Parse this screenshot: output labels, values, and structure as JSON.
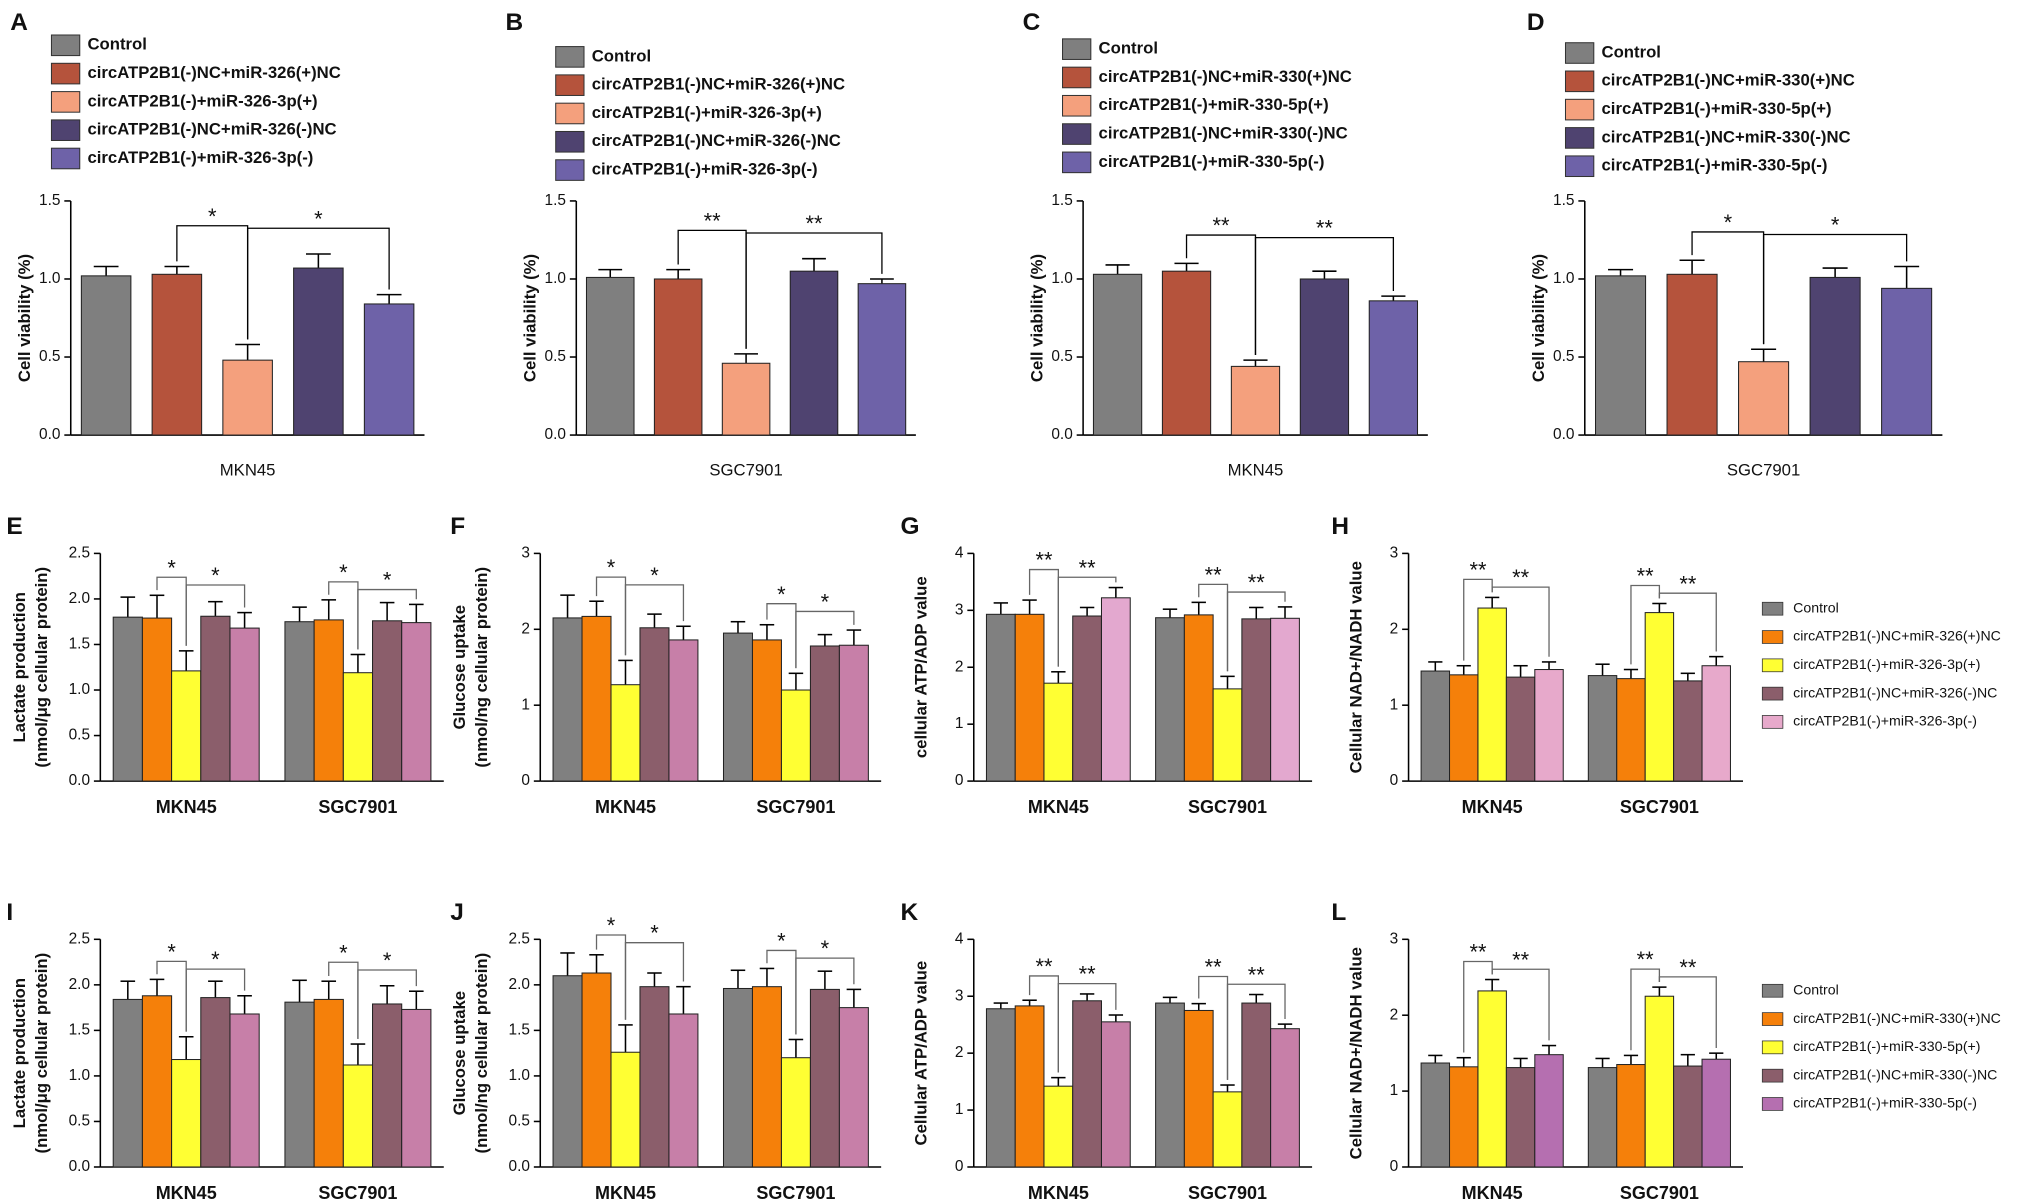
{
  "chart_data": [
    {
      "panel": "A",
      "type": "bar",
      "categories": [
        "MKN45"
      ],
      "legend": "top",
      "ylabel": [
        "Cell viability (%)"
      ],
      "ylim": [
        0,
        1.5
      ],
      "yticks": [
        {
          "value": 0,
          "label": "0.0"
        },
        {
          "value": 0.5,
          "label": "0.5"
        },
        {
          "value": 1,
          "label": "1.0"
        },
        {
          "value": 1.5,
          "label": "1.5"
        }
      ],
      "annotations": [
        "*",
        "*"
      ],
      "series": [
        {
          "name": "Control",
          "color": "#7f7f7f",
          "values": [
            1.02
          ],
          "errors": [
            0.06
          ]
        },
        {
          "name": "circATP2B1(-)NC+miR-326(+)NC",
          "color": "#b5533c",
          "values": [
            1.03
          ],
          "errors": [
            0.05
          ]
        },
        {
          "name": "circATP2B1(-)+miR-326-3p(+)",
          "color": "#f4a07d",
          "values": [
            0.48
          ],
          "errors": [
            0.1
          ]
        },
        {
          "name": "circATP2B1(-)NC+miR-326(-)NC",
          "color": "#4f4370",
          "values": [
            1.07
          ],
          "errors": [
            0.09
          ]
        },
        {
          "name": "circATP2B1(-)+miR-326-3p(-)",
          "color": "#6e62a8",
          "values": [
            0.84
          ],
          "errors": [
            0.06
          ]
        }
      ]
    },
    {
      "panel": "B",
      "type": "bar",
      "categories": [
        "SGC7901"
      ],
      "legend": "top",
      "ylabel": [
        "Cell viability (%)"
      ],
      "ylim": [
        0,
        1.5
      ],
      "yticks": [
        {
          "value": 0,
          "label": "0.0"
        },
        {
          "value": 0.5,
          "label": "0.5"
        },
        {
          "value": 1,
          "label": "1.0"
        },
        {
          "value": 1.5,
          "label": "1.5"
        }
      ],
      "annotations": [
        "**",
        "**"
      ],
      "series": [
        {
          "name": "Control",
          "color": "#7f7f7f",
          "values": [
            1.01
          ],
          "errors": [
            0.05
          ]
        },
        {
          "name": "circATP2B1(-)NC+miR-326(+)NC",
          "color": "#b5533c",
          "values": [
            1.0
          ],
          "errors": [
            0.06
          ]
        },
        {
          "name": "circATP2B1(-)+miR-326-3p(+)",
          "color": "#f4a07d",
          "values": [
            0.46
          ],
          "errors": [
            0.06
          ]
        },
        {
          "name": "circATP2B1(-)NC+miR-326(-)NC",
          "color": "#4f4370",
          "values": [
            1.05
          ],
          "errors": [
            0.08
          ]
        },
        {
          "name": "circATP2B1(-)+miR-326-3p(-)",
          "color": "#6e62a8",
          "values": [
            0.97
          ],
          "errors": [
            0.03
          ]
        }
      ]
    },
    {
      "panel": "C",
      "type": "bar",
      "categories": [
        "MKN45"
      ],
      "legend": "top",
      "ylabel": [
        "Cell viability (%)"
      ],
      "ylim": [
        0,
        1.5
      ],
      "yticks": [
        {
          "value": 0,
          "label": "0.0"
        },
        {
          "value": 0.5,
          "label": "0.5"
        },
        {
          "value": 1,
          "label": "1.0"
        },
        {
          "value": 1.5,
          "label": "1.5"
        }
      ],
      "annotations": [
        "**",
        "**"
      ],
      "series": [
        {
          "name": "Control",
          "color": "#7f7f7f",
          "values": [
            1.03
          ],
          "errors": [
            0.06
          ]
        },
        {
          "name": "circATP2B1(-)NC+miR-330(+)NC",
          "color": "#b5533c",
          "values": [
            1.05
          ],
          "errors": [
            0.05
          ]
        },
        {
          "name": "circATP2B1(-)+miR-330-5p(+)",
          "color": "#f4a07d",
          "values": [
            0.44
          ],
          "errors": [
            0.04
          ]
        },
        {
          "name": "circATP2B1(-)NC+miR-330(-)NC",
          "color": "#4f4370",
          "values": [
            1.0
          ],
          "errors": [
            0.05
          ]
        },
        {
          "name": "circATP2B1(-)+miR-330-5p(-)",
          "color": "#6e62a8",
          "values": [
            0.86
          ],
          "errors": [
            0.03
          ]
        }
      ]
    },
    {
      "panel": "D",
      "type": "bar",
      "categories": [
        "SGC7901"
      ],
      "legend": "top",
      "ylabel": [
        "Cell viability (%)"
      ],
      "ylim": [
        0,
        1.5
      ],
      "yticks": [
        {
          "value": 0,
          "label": "0.0"
        },
        {
          "value": 0.5,
          "label": "0.5"
        },
        {
          "value": 1,
          "label": "1.0"
        },
        {
          "value": 1.5,
          "label": "1.5"
        }
      ],
      "annotations": [
        "*",
        "*"
      ],
      "series": [
        {
          "name": "Control",
          "color": "#7f7f7f",
          "values": [
            1.02
          ],
          "errors": [
            0.04
          ]
        },
        {
          "name": "circATP2B1(-)NC+miR-330(+)NC",
          "color": "#b5533c",
          "values": [
            1.03
          ],
          "errors": [
            0.09
          ]
        },
        {
          "name": "circATP2B1(-)+miR-330-5p(+)",
          "color": "#f4a07d",
          "values": [
            0.47
          ],
          "errors": [
            0.08
          ]
        },
        {
          "name": "circATP2B1(-)NC+miR-330(-)NC",
          "color": "#4f4370",
          "values": [
            1.01
          ],
          "errors": [
            0.06
          ]
        },
        {
          "name": "circATP2B1(-)+miR-330-5p(-)",
          "color": "#6e62a8",
          "values": [
            0.94
          ],
          "errors": [
            0.14
          ]
        }
      ]
    },
    {
      "panel": "E",
      "type": "bar",
      "categories": [
        "MKN45",
        "SGC7901"
      ],
      "ylabel": [
        "Lactate production",
        "(nmol/μg cellular protein)"
      ],
      "ylim": [
        0,
        2.5
      ],
      "yticks": [
        {
          "value": 0,
          "label": "0.0"
        },
        {
          "value": 0.5,
          "label": "0.5"
        },
        {
          "value": 1,
          "label": "1.0"
        },
        {
          "value": 1.5,
          "label": "1.5"
        },
        {
          "value": 2,
          "label": "2.0"
        },
        {
          "value": 2.5,
          "label": "2.5"
        }
      ],
      "annotations": [
        "*",
        "*",
        "*",
        "*"
      ],
      "series": [
        {
          "color": "#808080",
          "values": [
            1.8,
            1.75
          ],
          "errors": [
            0.22,
            0.16
          ]
        },
        {
          "color": "#f5800a",
          "values": [
            1.79,
            1.77
          ],
          "errors": [
            0.25,
            0.22
          ]
        },
        {
          "color": "#ffff33",
          "values": [
            1.21,
            1.19
          ],
          "errors": [
            0.22,
            0.2
          ]
        },
        {
          "color": "#8b5e6b",
          "values": [
            1.81,
            1.76
          ],
          "errors": [
            0.16,
            0.2
          ]
        },
        {
          "color": "#c77fa8",
          "values": [
            1.68,
            1.74
          ],
          "errors": [
            0.17,
            0.2
          ]
        }
      ]
    },
    {
      "panel": "F",
      "type": "bar",
      "categories": [
        "MKN45",
        "SGC7901"
      ],
      "ylabel": [
        "Glucose uptake",
        "(nmol/ng cellular protein)"
      ],
      "ylim": [
        0,
        3
      ],
      "yticks": [
        0,
        1,
        2,
        3
      ],
      "annotations": [
        "*",
        "*",
        "*",
        "*"
      ],
      "series": [
        {
          "color": "#808080",
          "values": [
            2.15,
            1.95
          ],
          "errors": [
            0.3,
            0.15
          ]
        },
        {
          "color": "#f5800a",
          "values": [
            2.17,
            1.86
          ],
          "errors": [
            0.2,
            0.2
          ]
        },
        {
          "color": "#ffff33",
          "values": [
            1.27,
            1.2
          ],
          "errors": [
            0.32,
            0.22
          ]
        },
        {
          "color": "#8b5e6b",
          "values": [
            2.02,
            1.78
          ],
          "errors": [
            0.18,
            0.15
          ]
        },
        {
          "color": "#c77fa8",
          "values": [
            1.86,
            1.79
          ],
          "errors": [
            0.18,
            0.2
          ]
        }
      ]
    },
    {
      "panel": "G",
      "type": "bar",
      "categories": [
        "MKN45",
        "SGC7901"
      ],
      "ylabel": [
        "cellular ATP/ADP value"
      ],
      "ylim": [
        0,
        4
      ],
      "yticks": [
        0,
        1,
        2,
        3,
        4
      ],
      "annotations": [
        "**",
        "**",
        "**",
        "**"
      ],
      "series": [
        {
          "color": "#808080",
          "values": [
            2.93,
            2.87
          ],
          "errors": [
            0.2,
            0.15
          ]
        },
        {
          "color": "#f5800a",
          "values": [
            2.93,
            2.92
          ],
          "errors": [
            0.25,
            0.22
          ]
        },
        {
          "color": "#ffff33",
          "values": [
            1.72,
            1.62
          ],
          "errors": [
            0.2,
            0.22
          ]
        },
        {
          "color": "#8b5e6b",
          "values": [
            2.9,
            2.85
          ],
          "errors": [
            0.15,
            0.2
          ]
        },
        {
          "color": "#e3a8cf",
          "values": [
            3.22,
            2.86
          ],
          "errors": [
            0.18,
            0.2
          ]
        }
      ]
    },
    {
      "panel": "H",
      "type": "bar",
      "categories": [
        "MKN45",
        "SGC7901"
      ],
      "legend": "right",
      "ylabel": [
        "Cellular NAD+/NADH value"
      ],
      "ylim": [
        0,
        3
      ],
      "yticks": [
        0,
        1,
        2,
        3
      ],
      "annotations": [
        "**",
        "**",
        "**",
        "**"
      ],
      "series": [
        {
          "name": "Control",
          "color": "#808080",
          "values": [
            1.45,
            1.39
          ],
          "errors": [
            0.12,
            0.15
          ]
        },
        {
          "name": "circATP2B1(-)NC+miR-326(+)NC",
          "color": "#f5800a",
          "values": [
            1.4,
            1.35
          ],
          "errors": [
            0.12,
            0.12
          ]
        },
        {
          "name": "circATP2B1(-)+miR-326-3p(+)",
          "color": "#ffff33",
          "values": [
            2.28,
            2.22
          ],
          "errors": [
            0.14,
            0.12
          ]
        },
        {
          "name": "circATP2B1(-)NC+miR-326(-)NC",
          "color": "#8b5e6b",
          "values": [
            1.37,
            1.32
          ],
          "errors": [
            0.15,
            0.1
          ]
        },
        {
          "name": "circATP2B1(-)+miR-326-3p(-)",
          "color": "#e7a9cb",
          "values": [
            1.47,
            1.52
          ],
          "errors": [
            0.1,
            0.12
          ]
        }
      ]
    },
    {
      "panel": "I",
      "type": "bar",
      "categories": [
        "MKN45",
        "SGC7901"
      ],
      "ylabel": [
        "Lactate production",
        "(nmol/μg cellular protein)"
      ],
      "ylim": [
        0,
        2.5
      ],
      "yticks": [
        {
          "value": 0,
          "label": "0.0"
        },
        {
          "value": 0.5,
          "label": "0.5"
        },
        {
          "value": 1,
          "label": "1.0"
        },
        {
          "value": 1.5,
          "label": "1.5"
        },
        {
          "value": 2,
          "label": "2.0"
        },
        {
          "value": 2.5,
          "label": "2.5"
        }
      ],
      "annotations": [
        "*",
        "*",
        "*",
        "*"
      ],
      "series": [
        {
          "color": "#808080",
          "values": [
            1.84,
            1.81
          ],
          "errors": [
            0.2,
            0.24
          ]
        },
        {
          "color": "#f5800a",
          "values": [
            1.88,
            1.84
          ],
          "errors": [
            0.18,
            0.2
          ]
        },
        {
          "color": "#ffff33",
          "values": [
            1.18,
            1.12
          ],
          "errors": [
            0.25,
            0.23
          ]
        },
        {
          "color": "#8b5e6b",
          "values": [
            1.86,
            1.79
          ],
          "errors": [
            0.18,
            0.2
          ]
        },
        {
          "color": "#c77fa8",
          "values": [
            1.68,
            1.73
          ],
          "errors": [
            0.2,
            0.2
          ]
        }
      ]
    },
    {
      "panel": "J",
      "type": "bar",
      "categories": [
        "MKN45",
        "SGC7901"
      ],
      "ylabel": [
        "Glucose uptake",
        "(nmol/ng cellular protein)"
      ],
      "ylim": [
        0,
        2.5
      ],
      "yticks": [
        {
          "value": 0,
          "label": "0.0"
        },
        {
          "value": 0.5,
          "label": "0.5"
        },
        {
          "value": 1,
          "label": "1.0"
        },
        {
          "value": 1.5,
          "label": "1.5"
        },
        {
          "value": 2,
          "label": "2.0"
        },
        {
          "value": 2.5,
          "label": "2.5"
        }
      ],
      "annotations": [
        "*",
        "*",
        "*",
        "*"
      ],
      "series": [
        {
          "color": "#808080",
          "values": [
            2.1,
            1.96
          ],
          "errors": [
            0.25,
            0.2
          ]
        },
        {
          "color": "#f5800a",
          "values": [
            2.13,
            1.98
          ],
          "errors": [
            0.2,
            0.2
          ]
        },
        {
          "color": "#ffff33",
          "values": [
            1.26,
            1.2
          ],
          "errors": [
            0.3,
            0.2
          ]
        },
        {
          "color": "#8b5e6b",
          "values": [
            1.98,
            1.95
          ],
          "errors": [
            0.15,
            0.2
          ]
        },
        {
          "color": "#c77fa8",
          "values": [
            1.68,
            1.75
          ],
          "errors": [
            0.3,
            0.2
          ]
        }
      ]
    },
    {
      "panel": "K",
      "type": "bar",
      "categories": [
        "MKN45",
        "SGC7901"
      ],
      "ylabel": [
        "Cellular ATP/ADP value"
      ],
      "ylim": [
        0,
        4
      ],
      "yticks": [
        0,
        1,
        2,
        3,
        4
      ],
      "annotations": [
        "**",
        "**",
        "**",
        "**"
      ],
      "series": [
        {
          "color": "#808080",
          "values": [
            2.78,
            2.88
          ],
          "errors": [
            0.1,
            0.1
          ]
        },
        {
          "color": "#f5800a",
          "values": [
            2.83,
            2.75
          ],
          "errors": [
            0.1,
            0.12
          ]
        },
        {
          "color": "#ffff33",
          "values": [
            1.42,
            1.32
          ],
          "errors": [
            0.15,
            0.12
          ]
        },
        {
          "color": "#8b5e6b",
          "values": [
            2.92,
            2.88
          ],
          "errors": [
            0.12,
            0.15
          ]
        },
        {
          "color": "#c77fa8",
          "values": [
            2.55,
            2.43
          ],
          "errors": [
            0.12,
            0.08
          ]
        }
      ]
    },
    {
      "panel": "L",
      "type": "bar",
      "categories": [
        "MKN45",
        "SGC7901"
      ],
      "legend": "right",
      "ylabel": [
        "Cellular NAD+/NADH value"
      ],
      "ylim": [
        0,
        3
      ],
      "yticks": [
        0,
        1,
        2,
        3
      ],
      "annotations": [
        "**",
        "**",
        "**",
        "**"
      ],
      "series": [
        {
          "name": "Control",
          "color": "#808080",
          "values": [
            1.37,
            1.31
          ],
          "errors": [
            0.1,
            0.12
          ]
        },
        {
          "name": "circATP2B1(-)NC+miR-330(+)NC",
          "color": "#f5800a",
          "values": [
            1.32,
            1.35
          ],
          "errors": [
            0.12,
            0.12
          ]
        },
        {
          "name": "circATP2B1(-)+miR-330-5p(+)",
          "color": "#ffff33",
          "values": [
            2.32,
            2.25
          ],
          "errors": [
            0.15,
            0.12
          ]
        },
        {
          "name": "circATP2B1(-)NC+miR-330(-)NC",
          "color": "#8b5e6b",
          "values": [
            1.31,
            1.33
          ],
          "errors": [
            0.12,
            0.15
          ]
        },
        {
          "name": "circATP2B1(-)+miR-330-5p(-)",
          "color": "#b56fb0",
          "values": [
            1.48,
            1.42
          ],
          "errors": [
            0.12,
            0.08
          ]
        }
      ]
    }
  ]
}
